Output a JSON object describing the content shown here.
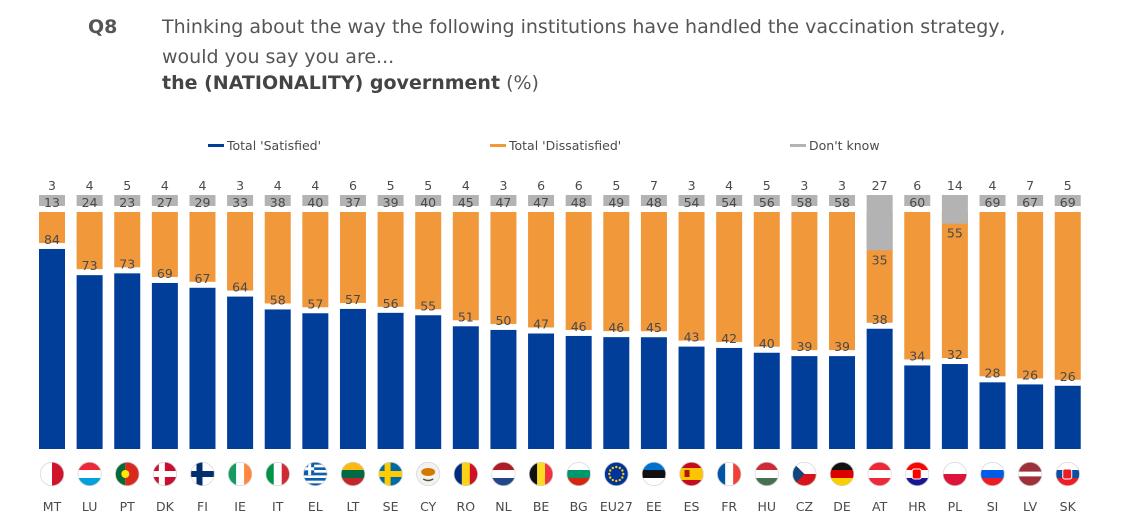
{
  "question": {
    "number": "Q8",
    "line1": "Thinking about the way the following institutions have handled the vaccination strategy,",
    "line2": "would you say you are...",
    "subject": "the (NATIONALITY) government",
    "unit": "(%)"
  },
  "colors": {
    "satisfied": "#003e99",
    "dissatisfied": "#f0983a",
    "dont_know": "#b3b3b3",
    "label": "#4a4a4a"
  },
  "chart_data": {
    "type": "bar",
    "stacked": true,
    "categories": [
      "MT",
      "LU",
      "PT",
      "DK",
      "FI",
      "IE",
      "IT",
      "EL",
      "LT",
      "SE",
      "CY",
      "RO",
      "NL",
      "BE",
      "BG",
      "EU27",
      "EE",
      "ES",
      "FR",
      "HU",
      "CZ",
      "DE",
      "AT",
      "HR",
      "PL",
      "SI",
      "LV",
      "SK"
    ],
    "series": [
      {
        "name": "Total 'Satisfied'",
        "values": [
          84,
          73,
          73,
          69,
          67,
          64,
          58,
          57,
          57,
          56,
          55,
          51,
          50,
          47,
          46,
          46,
          45,
          43,
          42,
          40,
          39,
          39,
          38,
          34,
          32,
          28,
          26,
          26
        ]
      },
      {
        "name": "Total 'Dissatisfied'",
        "values": [
          13,
          24,
          23,
          27,
          29,
          33,
          38,
          40,
          37,
          39,
          40,
          45,
          47,
          47,
          48,
          49,
          48,
          54,
          54,
          56,
          58,
          58,
          35,
          60,
          55,
          69,
          67,
          69
        ]
      },
      {
        "name": "Don't know",
        "values": [
          3,
          4,
          5,
          4,
          4,
          3,
          4,
          4,
          6,
          5,
          5,
          4,
          3,
          6,
          6,
          5,
          7,
          3,
          4,
          5,
          3,
          3,
          27,
          6,
          14,
          4,
          7,
          5
        ]
      }
    ],
    "legend_position": "top",
    "ylim": [
      0,
      100
    ]
  }
}
